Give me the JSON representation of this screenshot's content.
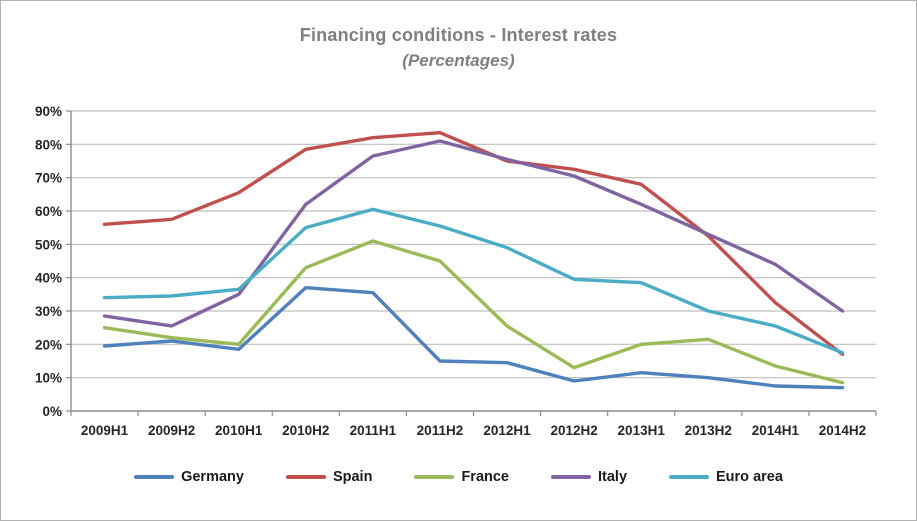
{
  "chart": {
    "title": "Financing conditions - Interest rates",
    "subtitle": "(Percentages)",
    "title_color": "#7f7f7f"
  },
  "chart_data": {
    "type": "line",
    "title": "Financing conditions - Interest rates",
    "subtitle": "(Percentages)",
    "categories": [
      "2009H1",
      "2009H2",
      "2010H1",
      "2010H2",
      "2011H1",
      "2011H2",
      "2012H1",
      "2012H2",
      "2013H1",
      "2013H2",
      "2014H1",
      "2014H2"
    ],
    "series": [
      {
        "name": "Germany",
        "color": "#4f81bd",
        "values": [
          19.5,
          21,
          18.5,
          37,
          35.5,
          15,
          14.5,
          9,
          11.5,
          10,
          7.5,
          7
        ]
      },
      {
        "name": "Spain",
        "color": "#c0504d",
        "values": [
          56,
          57.5,
          65.5,
          78.5,
          82,
          83.5,
          75,
          72.5,
          68,
          52.5,
          32.5,
          17
        ]
      },
      {
        "name": "France",
        "color": "#9bbb59",
        "values": [
          25,
          22,
          20,
          43,
          51,
          45,
          25.5,
          13,
          20,
          21.5,
          13.5,
          8.5
        ]
      },
      {
        "name": "Italy",
        "color": "#8064a2",
        "values": [
          28.5,
          25.5,
          35,
          62,
          76.5,
          81,
          75.5,
          70.5,
          62,
          53,
          44,
          30
        ]
      },
      {
        "name": "Euro area",
        "color": "#4bacc6",
        "values": [
          34,
          34.5,
          36.5,
          55,
          60.5,
          55.5,
          49,
          39.5,
          38.5,
          30,
          25.5,
          17.5
        ]
      }
    ],
    "xlabel": "",
    "ylabel": "",
    "ylim": [
      0,
      90
    ],
    "ytick_step": 10,
    "ytick_suffix": "%",
    "grid": true,
    "legend_position": "bottom"
  },
  "style": {
    "grid_color": "#bfbfbf",
    "axis_color": "#8c8c8c",
    "tick_label_color": "#262626"
  }
}
